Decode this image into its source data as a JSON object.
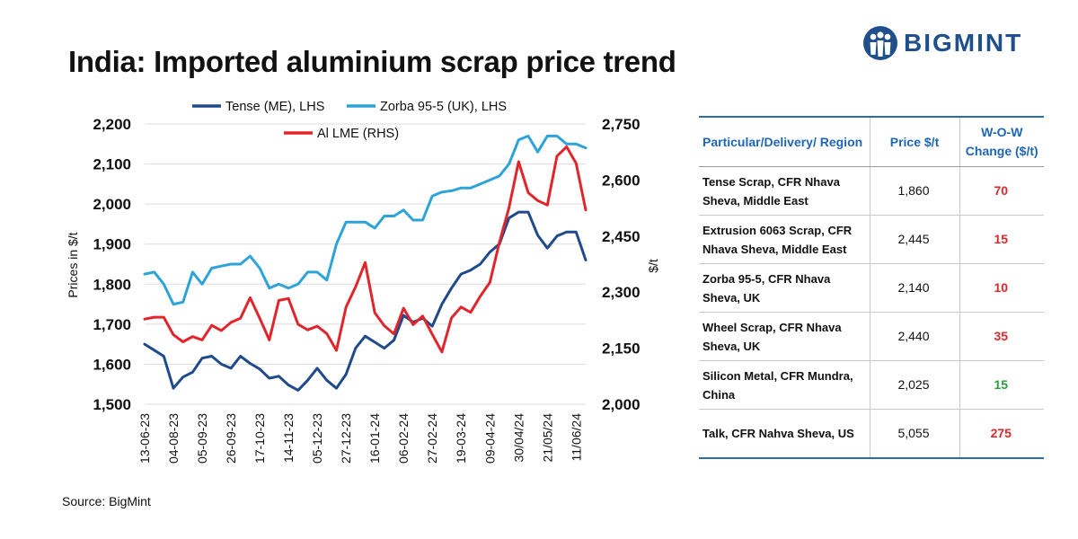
{
  "title": "India: Imported aluminium scrap price trend",
  "brand": {
    "name": "BIGMINT",
    "color": "#1f4f8c"
  },
  "source": "Source: BigMint",
  "chart_data": {
    "type": "line",
    "x": [
      "13-06-23",
      "",
      "",
      "04-08-23",
      "",
      "",
      "05-09-23",
      "",
      "",
      "26-09-23",
      "",
      "",
      "17-10-23",
      "",
      "",
      "14-11-23",
      "",
      "",
      "05-12-23",
      "",
      "",
      "27-12-23",
      "",
      "",
      "16-01-24",
      "",
      "",
      "06-02-24",
      "",
      "",
      "27-02-24",
      "",
      "",
      "19-03-24",
      "",
      "",
      "09-04-24",
      "",
      "",
      "30/04/24",
      "",
      "",
      "21/05/24",
      "",
      "",
      "11/06/24",
      ""
    ],
    "y_left": {
      "label": "Prices in $/t",
      "range": [
        1500,
        2200
      ],
      "ticks": [
        1500,
        1600,
        1700,
        1800,
        1900,
        2000,
        2100,
        2200
      ],
      "tick_labels": [
        "1,500",
        "1,600",
        "1,700",
        "1,800",
        "1,900",
        "2,000",
        "2,100",
        "2,200"
      ]
    },
    "y_right": {
      "label": "$/t",
      "range": [
        2000,
        2750
      ],
      "ticks": [
        2000,
        2150,
        2300,
        2450,
        2600,
        2750
      ],
      "tick_labels": [
        "2,000",
        "2,150",
        "2,300",
        "2,450",
        "2,600",
        "2,750"
      ]
    },
    "series": [
      {
        "name": "Tense (ME), LHS",
        "axis": "left",
        "color": "#1f4a8c",
        "values": [
          1650,
          1635,
          1620,
          1540,
          1568,
          1580,
          1615,
          1620,
          1600,
          1590,
          1620,
          1602,
          1588,
          1565,
          1570,
          1548,
          1535,
          1560,
          1590,
          1560,
          1540,
          1575,
          1640,
          1670,
          1655,
          1640,
          1660,
          1722,
          1705,
          1715,
          1695,
          1750,
          1790,
          1825,
          1835,
          1850,
          1880,
          1900,
          1965,
          1980,
          1980,
          1922,
          1890,
          1920,
          1930,
          1930,
          1860
        ]
      },
      {
        "name": "Zorba 95-5 (UK), LHS",
        "axis": "left",
        "color": "#2ea3d8",
        "values": [
          1825,
          1830,
          1800,
          1750,
          1755,
          1830,
          1800,
          1840,
          1845,
          1850,
          1850,
          1870,
          1840,
          1790,
          1800,
          1790,
          1800,
          1830,
          1830,
          1810,
          1900,
          1955,
          1955,
          1955,
          1940,
          1970,
          1970,
          1985,
          1960,
          1960,
          2020,
          2030,
          2033,
          2040,
          2040,
          2050,
          2060,
          2070,
          2100,
          2160,
          2170,
          2130,
          2170,
          2170,
          2150,
          2150,
          2140
        ]
      },
      {
        "name": "Al LME (RHS)",
        "axis": "right",
        "color": "#e0262b",
        "values": [
          2228,
          2233,
          2233,
          2186,
          2167,
          2181,
          2172,
          2211,
          2197,
          2219,
          2230,
          2285,
          2230,
          2172,
          2278,
          2283,
          2214,
          2199,
          2209,
          2189,
          2144,
          2260,
          2314,
          2379,
          2245,
          2210,
          2188,
          2257,
          2213,
          2236,
          2187,
          2140,
          2231,
          2260,
          2246,
          2289,
          2326,
          2433,
          2526,
          2649,
          2566,
          2545,
          2533,
          2664,
          2689,
          2645,
          2520
        ]
      }
    ]
  },
  "table": {
    "headers": [
      "Particular/Delivery/ Region",
      "Price $/t",
      "W-O-W Change ($/t)"
    ],
    "header_color": "#1f67b5",
    "rows": [
      {
        "particular": "Tense Scrap, CFR Nhava Sheva, Middle East",
        "price": "1,860",
        "change": "70",
        "change_color": "#e0262b"
      },
      {
        "particular": "Extrusion 6063 Scrap, CFR Nhava Sheva, Middle East",
        "price": "2,445",
        "change": "15",
        "change_color": "#e0262b"
      },
      {
        "particular": "Zorba 95-5, CFR Nhava Sheva, UK",
        "price": "2,140",
        "change": "10",
        "change_color": "#e0262b"
      },
      {
        "particular": "Wheel Scrap, CFR Nhava Sheva, UK",
        "price": "2,440",
        "change": "35",
        "change_color": "#e0262b"
      },
      {
        "particular": "Silicon Metal, CFR Mundra, China",
        "price": "2,025",
        "change": "15",
        "change_color": "#2e9e3e"
      },
      {
        "particular": "Talk, CFR Nahva Sheva, US",
        "price": "5,055",
        "change": "275",
        "change_color": "#e0262b"
      }
    ]
  }
}
